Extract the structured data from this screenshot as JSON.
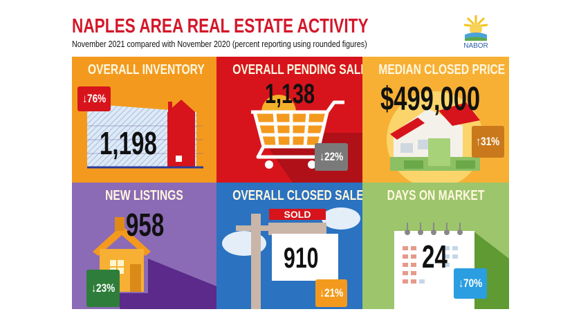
{
  "header": {
    "title": "NAPLES AREA REAL ESTATE ACTIVITY",
    "subtitle": "November 2021 compared with November 2020 (percent reporting using rounded figures)",
    "logo_text": "NABOR"
  },
  "tiles": [
    {
      "heading": "OVERALL INVENTORY",
      "value": "1,198",
      "change": "↓76%",
      "direction": "down",
      "color": "#f39a1e",
      "badge_color": "#d7141c"
    },
    {
      "heading": "OVERALL PENDING SALES",
      "value": "1,138",
      "change": "↓22%",
      "direction": "down",
      "color": "#d7141c",
      "badge_color": "#7a7a7a"
    },
    {
      "heading": "MEDIAN CLOSED PRICE",
      "value": "$499,000",
      "change": "↑31%",
      "direction": "up",
      "color": "#f7b034",
      "badge_color": "#c9791c"
    },
    {
      "heading": "NEW LISTINGS",
      "value": "958",
      "change": "↓23%",
      "direction": "down",
      "color": "#8b6bb5",
      "badge_color": "#2e7d3a"
    },
    {
      "heading": "OVERALL CLOSED SALES",
      "value": "910",
      "change": "↓21%",
      "direction": "down",
      "color": "#2b72c0",
      "badge_color": "#f39a1e",
      "sign_text": "SOLD"
    },
    {
      "heading": "DAYS ON MARKET",
      "value": "24",
      "change": "↓70%",
      "direction": "down",
      "color": "#9dc56b",
      "badge_color": "#2a9ee0"
    }
  ]
}
